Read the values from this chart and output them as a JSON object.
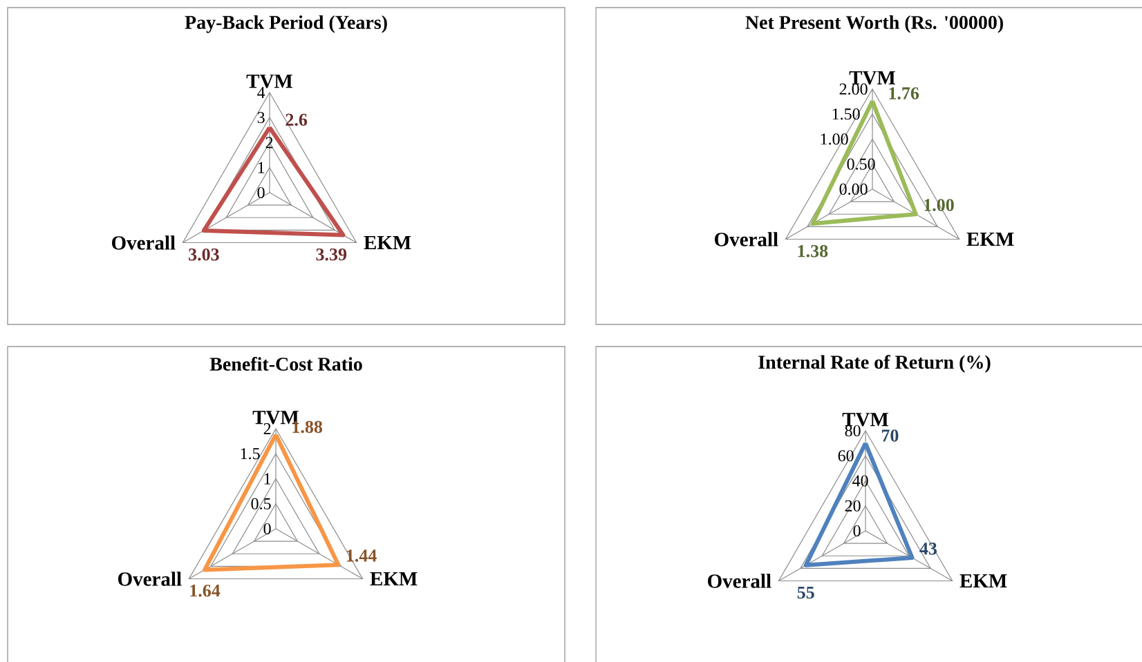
{
  "chart_data": [
    {
      "type": "radar",
      "title": "Pay-Back Period (Years)",
      "categories": [
        "TVM",
        "EKM",
        "Overall"
      ],
      "ylim": [
        0,
        4
      ],
      "yticks": [
        0,
        1,
        2,
        3,
        4
      ],
      "grid": true,
      "data_labels": true,
      "series": [
        {
          "color": "#c0504d",
          "values": [
            2.6,
            3.39,
            3.03
          ]
        }
      ]
    },
    {
      "type": "radar",
      "title": "Net Present Worth (Rs. '00000)",
      "categories": [
        "TVM",
        "EKM",
        "Overall"
      ],
      "ylim": [
        0,
        2
      ],
      "yticks": [
        {
          "value": 0,
          "label": "0.00"
        },
        {
          "value": 0.5,
          "label": "0.50"
        },
        {
          "value": 1,
          "label": "1.00"
        },
        {
          "value": 1.5,
          "label": "1.50"
        },
        {
          "value": 2,
          "label": "2.00"
        }
      ],
      "grid": true,
      "series": [
        {
          "color": "#9bbb59",
          "values": [
            1.76,
            1.0,
            1.38
          ],
          "value_labels": [
            "1.76",
            "1.00",
            "1.38"
          ]
        }
      ]
    },
    {
      "type": "radar",
      "title": "Benefit-Cost Ratio",
      "categories": [
        "TVM",
        "EKM",
        "Overall"
      ],
      "ylim": [
        0,
        2
      ],
      "yticks": [
        0,
        0.5,
        1,
        1.5,
        2
      ],
      "grid": true,
      "data_labels": true,
      "series": [
        {
          "color": "#f79646",
          "values": [
            1.88,
            1.44,
            1.64
          ]
        }
      ]
    },
    {
      "type": "radar",
      "title": "Internal Rate of Return (%)",
      "categories": [
        "TVM",
        "EKM",
        "Overall"
      ],
      "ylim": [
        0,
        80
      ],
      "yticks": [
        0,
        20,
        40,
        60,
        80
      ],
      "grid": true,
      "data_labels": true,
      "series": [
        {
          "color": "#4f81bd",
          "values": [
            70,
            43,
            55
          ]
        }
      ]
    }
  ]
}
